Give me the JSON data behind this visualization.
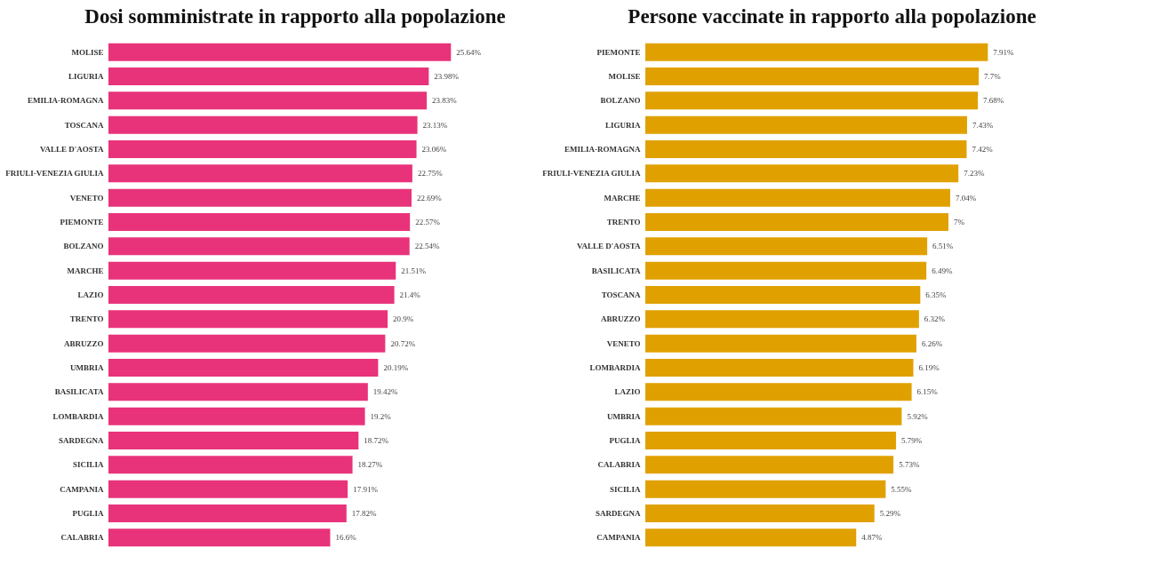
{
  "chart_data": [
    {
      "type": "bar",
      "orientation": "horizontal",
      "title": "Dosi somministrate in rapporto alla popolazione",
      "categories": [
        "MOLISE",
        "LIGURIA",
        "EMILIA-ROMAGNA",
        "TOSCANA",
        "VALLE D'AOSTA",
        "FRIULI-VENEZIA GIULIA",
        "VENETO",
        "PIEMONTE",
        "BOLZANO",
        "MARCHE",
        "LAZIO",
        "TRENTO",
        "ABRUZZO",
        "UMBRIA",
        "BASILICATA",
        "LOMBARDIA",
        "SARDEGNA",
        "SICILIA",
        "CAMPANIA",
        "PUGLIA",
        "CALABRIA"
      ],
      "values": [
        25.64,
        23.98,
        23.83,
        23.13,
        23.06,
        22.75,
        22.69,
        22.57,
        22.54,
        21.51,
        21.4,
        20.9,
        20.72,
        20.19,
        19.42,
        19.2,
        18.72,
        18.27,
        17.91,
        17.82,
        16.6
      ],
      "value_labels": [
        "25.64%",
        "23.98%",
        "23.83%",
        "23.13%",
        "23.06%",
        "22.75%",
        "22.69%",
        "22.57%",
        "22.54%",
        "21.51%",
        "21.4%",
        "20.9%",
        "20.72%",
        "20.19%",
        "19.42%",
        "19.2%",
        "18.72%",
        "18.27%",
        "17.91%",
        "17.82%",
        "16.6%"
      ],
      "color": "#e8337a"
    },
    {
      "type": "bar",
      "orientation": "horizontal",
      "title": "Persone vaccinate in rapporto alla popolazione",
      "categories": [
        "PIEMONTE",
        "MOLISE",
        "BOLZANO",
        "LIGURIA",
        "EMILIA-ROMAGNA",
        "FRIULI-VENEZIA GIULIA",
        "MARCHE",
        "TRENTO",
        "VALLE D'AOSTA",
        "BASILICATA",
        "TOSCANA",
        "ABRUZZO",
        "VENETO",
        "LOMBARDIA",
        "LAZIO",
        "UMBRIA",
        "PUGLIA",
        "CALABRIA",
        "SICILIA",
        "SARDEGNA",
        "CAMPANIA"
      ],
      "values": [
        7.91,
        7.7,
        7.68,
        7.43,
        7.42,
        7.23,
        7.04,
        7,
        6.51,
        6.49,
        6.35,
        6.32,
        6.26,
        6.19,
        6.15,
        5.92,
        5.79,
        5.73,
        5.55,
        5.29,
        4.87
      ],
      "value_labels": [
        "7.91%",
        "7.7%",
        "7.68%",
        "7.43%",
        "7.42%",
        "7.23%",
        "7.04%",
        "7%",
        "6.51%",
        "6.49%",
        "6.35%",
        "6.32%",
        "6.26%",
        "6.19%",
        "6.15%",
        "5.92%",
        "5.79%",
        "5.73%",
        "5.55%",
        "5.29%",
        "4.87%"
      ],
      "color": "#e0a100"
    }
  ]
}
